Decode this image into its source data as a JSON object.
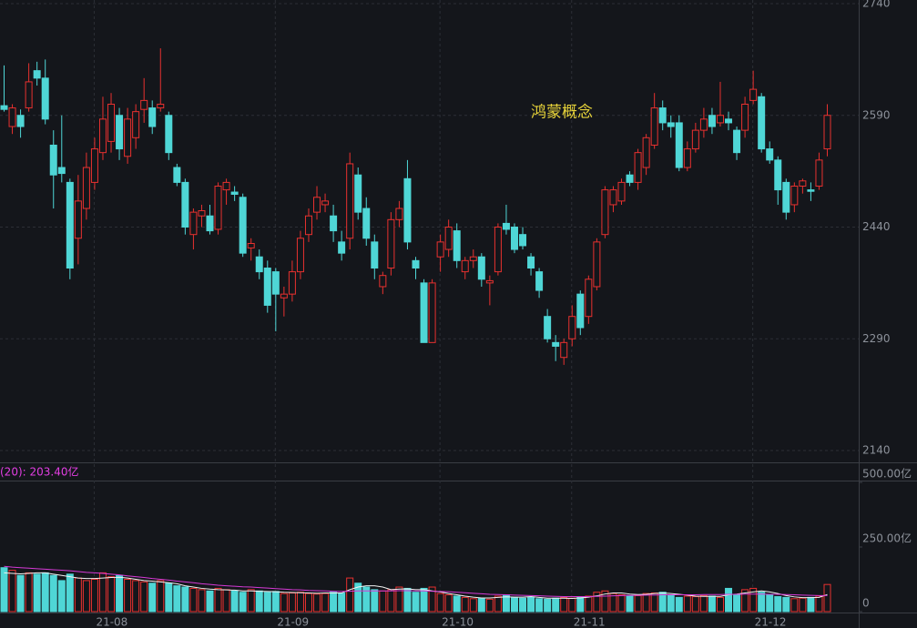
{
  "chart_data": {
    "type": "candlestick",
    "title": "鸿蒙概念",
    "categories": [
      null,
      null,
      null,
      null,
      null,
      null,
      null,
      null,
      null,
      null,
      null,
      "21-08",
      null,
      null,
      null,
      null,
      null,
      null,
      null,
      null,
      null,
      null,
      null,
      null,
      null,
      null,
      null,
      null,
      null,
      null,
      null,
      null,
      null,
      "21-09",
      null,
      null,
      null,
      null,
      null,
      null,
      null,
      null,
      null,
      null,
      null,
      null,
      null,
      null,
      null,
      null,
      null,
      null,
      null,
      "21-10",
      null,
      null,
      null,
      null,
      null,
      null,
      null,
      null,
      null,
      null,
      null,
      null,
      null,
      null,
      null,
      "21-11",
      null,
      null,
      null,
      null,
      null,
      null,
      null,
      null,
      null,
      null,
      null,
      null,
      null,
      null,
      null,
      null,
      null,
      null,
      null,
      null,
      null,
      "21-12",
      null,
      null,
      null,
      null,
      null,
      null,
      null,
      null,
      null
    ],
    "open": [
      2603,
      2575,
      2590,
      2600,
      2650,
      2640,
      2550,
      2520,
      2500,
      2425,
      2465,
      2500,
      2540,
      2555,
      2590,
      2535,
      2560,
      2598,
      2600,
      2600,
      2590,
      2520,
      2500,
      2430,
      2455,
      2455,
      2437,
      2490,
      2487,
      2480,
      2412,
      2400,
      2385,
      2380,
      2345,
      2350,
      2380,
      2430,
      2460,
      2470,
      2455,
      2420,
      2425,
      2510,
      2465,
      2420,
      2360,
      2385,
      2450,
      2505,
      2395,
      2365,
      2285,
      2400,
      2410,
      2435,
      2380,
      2395,
      2400,
      2365,
      2380,
      2445,
      2440,
      2430,
      2400,
      2380,
      2320,
      2285,
      2265,
      2290,
      2350,
      2320,
      2360,
      2430,
      2470,
      2475,
      2510,
      2500,
      2520,
      2550,
      2600,
      2580,
      2580,
      2520,
      2545,
      2570,
      2590,
      2580,
      2585,
      2570,
      2570,
      2610,
      2615,
      2545,
      2530,
      2500,
      2470,
      2495,
      2490,
      2495,
      2545
    ],
    "high": [
      2657,
      2605,
      2598,
      2660,
      2662,
      2665,
      2570,
      2590,
      2505,
      2510,
      2540,
      2560,
      2615,
      2620,
      2600,
      2600,
      2605,
      2640,
      2610,
      2680,
      2595,
      2525,
      2505,
      2465,
      2470,
      2470,
      2500,
      2505,
      2495,
      2485,
      2425,
      2410,
      2395,
      2385,
      2360,
      2395,
      2435,
      2465,
      2495,
      2485,
      2470,
      2435,
      2540,
      2520,
      2480,
      2430,
      2380,
      2460,
      2475,
      2530,
      2400,
      2370,
      2370,
      2430,
      2450,
      2445,
      2400,
      2410,
      2405,
      2375,
      2445,
      2470,
      2445,
      2440,
      2405,
      2385,
      2330,
      2295,
      2290,
      2335,
      2355,
      2375,
      2425,
      2495,
      2495,
      2505,
      2515,
      2545,
      2565,
      2620,
      2610,
      2590,
      2590,
      2555,
      2580,
      2600,
      2600,
      2635,
      2595,
      2575,
      2615,
      2650,
      2620,
      2555,
      2535,
      2505,
      2500,
      2505,
      2500,
      2540,
      2605
    ],
    "low": [
      2595,
      2565,
      2560,
      2595,
      2630,
      2578,
      2465,
      2500,
      2370,
      2390,
      2450,
      2490,
      2530,
      2540,
      2530,
      2525,
      2545,
      2580,
      2565,
      2595,
      2530,
      2495,
      2430,
      2410,
      2440,
      2430,
      2430,
      2470,
      2475,
      2400,
      2395,
      2370,
      2325,
      2300,
      2320,
      2340,
      2370,
      2420,
      2450,
      2460,
      2420,
      2395,
      2410,
      2450,
      2415,
      2370,
      2350,
      2375,
      2440,
      2410,
      2370,
      2285,
      2285,
      2380,
      2400,
      2385,
      2370,
      2385,
      2360,
      2335,
      2375,
      2430,
      2405,
      2410,
      2375,
      2345,
      2285,
      2260,
      2255,
      2280,
      2295,
      2310,
      2355,
      2425,
      2460,
      2470,
      2495,
      2490,
      2510,
      2545,
      2570,
      2560,
      2515,
      2515,
      2540,
      2560,
      2565,
      2575,
      2570,
      2530,
      2560,
      2605,
      2540,
      2525,
      2470,
      2450,
      2460,
      2485,
      2475,
      2490,
      2535
    ],
    "close": [
      2598,
      2600,
      2575,
      2635,
      2640,
      2585,
      2510,
      2512,
      2385,
      2475,
      2520,
      2545,
      2585,
      2605,
      2545,
      2585,
      2595,
      2610,
      2575,
      2605,
      2540,
      2500,
      2440,
      2460,
      2462,
      2435,
      2495,
      2500,
      2484,
      2405,
      2418,
      2380,
      2335,
      2350,
      2350,
      2380,
      2425,
      2455,
      2480,
      2475,
      2435,
      2405,
      2525,
      2460,
      2425,
      2385,
      2375,
      2450,
      2465,
      2420,
      2385,
      2285,
      2365,
      2420,
      2440,
      2395,
      2395,
      2400,
      2370,
      2368,
      2440,
      2437,
      2410,
      2415,
      2385,
      2355,
      2290,
      2280,
      2285,
      2320,
      2305,
      2370,
      2420,
      2490,
      2490,
      2500,
      2500,
      2540,
      2560,
      2600,
      2580,
      2575,
      2520,
      2545,
      2570,
      2585,
      2575,
      2590,
      2580,
      2540,
      2605,
      2625,
      2545,
      2530,
      2490,
      2460,
      2495,
      2502,
      2488,
      2530,
      2590
    ],
    "up_color": "#e8312f",
    "down_color": "#4fd6d6",
    "ylim": [
      2140,
      2740
    ],
    "yticks": [
      2140,
      2290,
      2440,
      2590,
      2740
    ],
    "grid": true,
    "volume": {
      "label": "(20): 203.40亿",
      "values": [
        170,
        160,
        140,
        150,
        145,
        150,
        140,
        120,
        145,
        130,
        120,
        125,
        150,
        135,
        140,
        125,
        120,
        115,
        110,
        120,
        110,
        100,
        95,
        90,
        85,
        80,
        90,
        85,
        80,
        75,
        85,
        80,
        75,
        78,
        70,
        72,
        75,
        70,
        68,
        70,
        75,
        72,
        130,
        110,
        95,
        85,
        80,
        85,
        95,
        90,
        75,
        90,
        95,
        70,
        65,
        60,
        55,
        50,
        52,
        48,
        60,
        65,
        55,
        52,
        55,
        50,
        48,
        52,
        55,
        52,
        58,
        60,
        75,
        80,
        70,
        65,
        60,
        62,
        70,
        72,
        75,
        62,
        55,
        60,
        58,
        62,
        60,
        55,
        90,
        65,
        85,
        90,
        75,
        65,
        58,
        55,
        50,
        52,
        55,
        60,
        105
      ],
      "ylim": [
        0,
        500
      ],
      "yticks": [
        {
          "value": 500,
          "label": "500.00亿"
        },
        {
          "value": 250,
          "label": "250.00亿"
        },
        0
      ],
      "lines": [
        {
          "color": "#f2f2f2",
          "values": [
            150,
            148,
            146,
            148,
            150,
            150,
            145,
            140,
            135,
            130,
            128,
            128,
            130,
            132,
            133,
            130,
            125,
            120,
            118,
            115,
            112,
            108,
            100,
            95,
            90,
            87,
            85,
            84,
            83,
            80,
            80,
            79,
            78,
            77,
            75,
            74,
            73,
            72,
            71,
            72,
            72,
            72,
            85,
            95,
            100,
            100,
            95,
            85,
            87,
            88,
            85,
            85,
            80,
            76,
            70,
            65,
            60,
            56,
            53,
            53,
            55,
            57,
            56,
            56,
            58,
            55,
            52,
            52,
            52,
            51,
            53,
            56,
            61,
            68,
            72,
            72,
            68,
            66,
            67,
            70,
            72,
            70,
            67,
            64,
            60,
            59,
            59,
            59,
            65,
            68,
            72,
            76,
            80,
            76,
            70,
            62,
            57,
            54,
            54,
            55,
            66
          ]
        },
        {
          "color": "#d63ad6",
          "values": [
            175,
            172,
            170,
            168,
            166,
            164,
            162,
            160,
            158,
            155,
            152,
            150,
            148,
            145,
            142,
            138,
            135,
            132,
            128,
            125,
            122,
            118,
            115,
            112,
            108,
            105,
            102,
            100,
            98,
            96,
            95,
            93,
            91,
            89,
            87,
            85,
            84,
            82,
            81,
            80,
            79,
            78,
            79,
            80,
            80,
            80,
            80,
            80,
            81,
            81,
            80,
            80,
            79,
            78,
            77,
            75,
            73,
            71,
            69,
            67,
            66,
            65,
            64,
            63,
            62,
            61,
            60,
            59,
            58,
            58,
            58,
            58,
            59,
            60,
            61,
            62,
            63,
            63,
            64,
            64,
            65,
            65,
            65,
            65,
            65,
            66,
            66,
            66,
            67,
            67,
            68,
            68,
            68,
            67,
            67,
            66,
            65,
            64,
            63,
            62,
            62
          ]
        }
      ]
    }
  }
}
